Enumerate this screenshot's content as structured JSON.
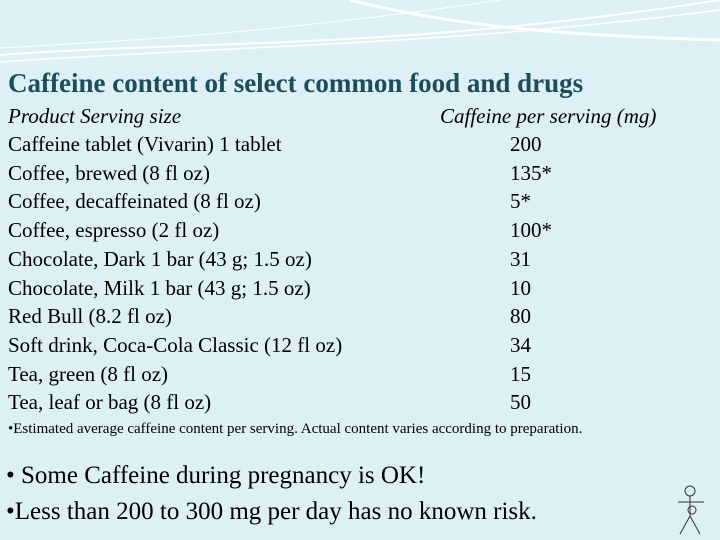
{
  "title": "Caffeine content of select common food and drugs",
  "table": {
    "header": [
      "Product Serving size",
      "Caffeine per serving (mg)"
    ],
    "rows": [
      [
        "Caffeine tablet (Vivarin) 1 tablet",
        "200"
      ],
      [
        "Coffee, brewed (8 fl oz)",
        "135*"
      ],
      [
        "Coffee, decaffeinated (8 fl oz)",
        "5*"
      ],
      [
        "Coffee, espresso (2 fl oz)",
        "100*"
      ],
      [
        "Chocolate, Dark 1 bar (43 g; 1.5 oz)",
        "31"
      ],
      [
        "Chocolate, Milk 1 bar (43 g; 1.5 oz)",
        "10"
      ],
      [
        "Red Bull (8.2 fl oz)",
        "80"
      ],
      [
        "Soft drink, Coca-Cola Classic (12 fl oz)",
        "34"
      ],
      [
        "Tea, green (8 fl oz)",
        "15"
      ],
      [
        "Tea, leaf or bag (8 fl oz)",
        "50"
      ]
    ]
  },
  "footnote": "•Estimated average caffeine content per serving. Actual content varies according to preparation.",
  "bullets": [
    "• Some Caffeine during pregnancy is OK!",
    "•Less than 200 to 300 mg per day has no known risk."
  ]
}
